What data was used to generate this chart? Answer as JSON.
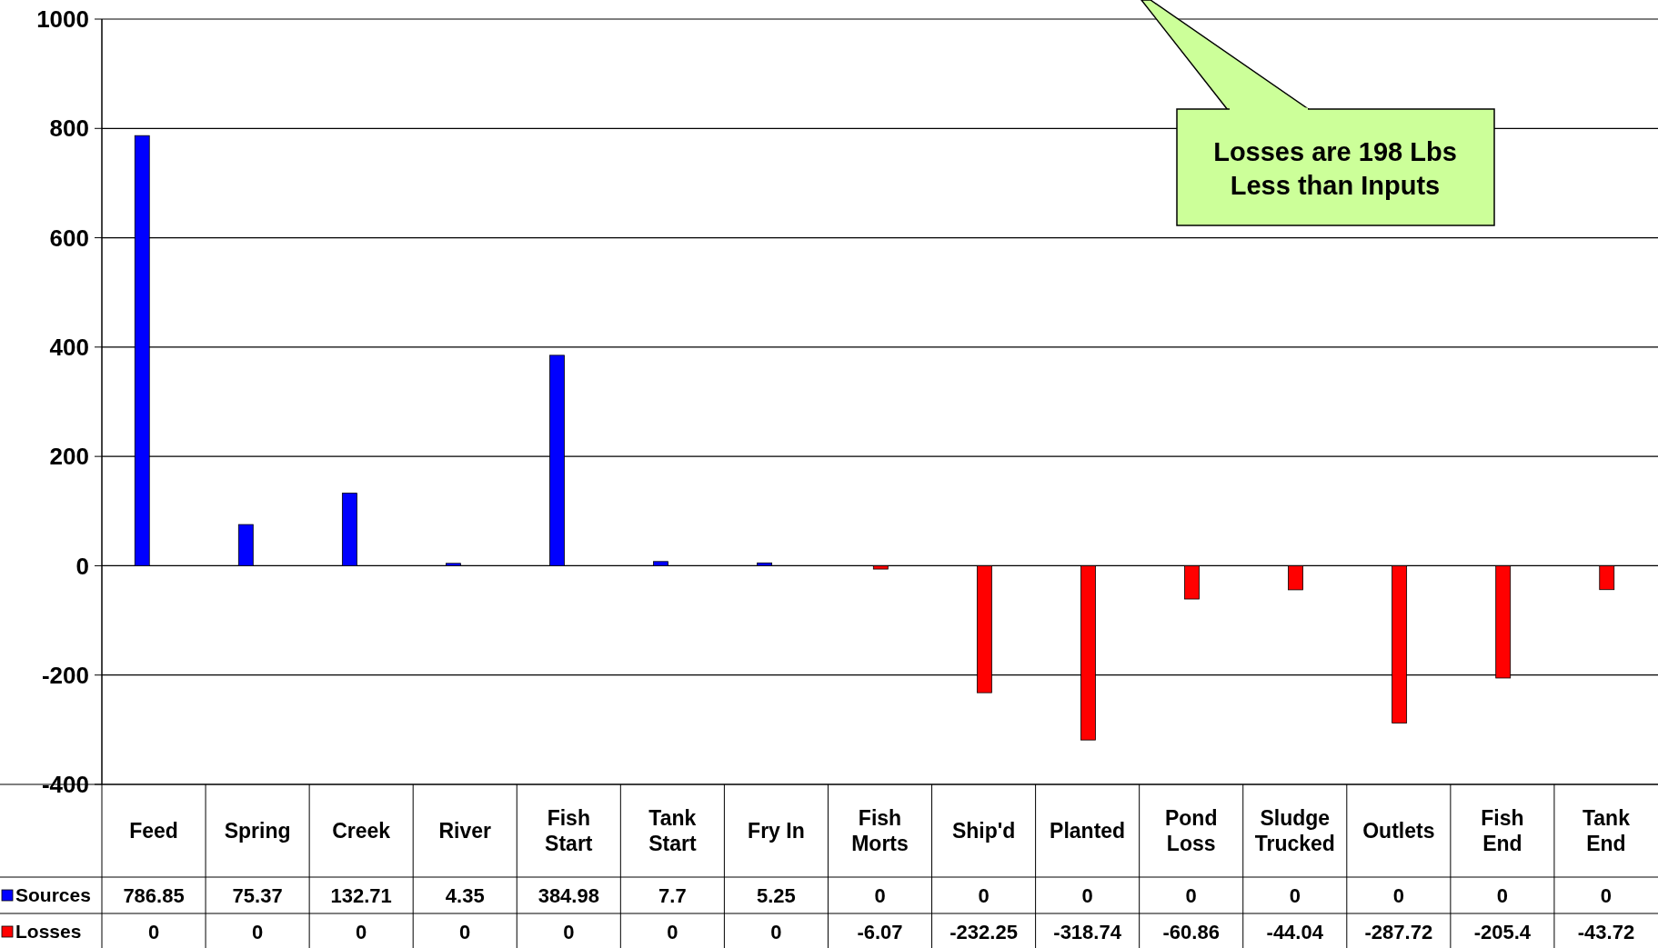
{
  "chart_data": {
    "type": "bar",
    "categories": [
      "Feed",
      "Spring",
      "Creek",
      "River",
      "Fish Start",
      "Tank Start",
      "Fry In",
      "Fish Morts",
      "Ship'd",
      "Planted",
      "Pond Loss",
      "Sludge Trucked",
      "Outlets",
      "Fish End",
      "Tank End"
    ],
    "series": [
      {
        "name": "Sources",
        "color": "#0000ff",
        "values": [
          786.85,
          75.37,
          132.71,
          4.35,
          384.98,
          7.7,
          5.25,
          0,
          0,
          0,
          0,
          0,
          0,
          0,
          0
        ]
      },
      {
        "name": "Losses",
        "color": "#ff0000",
        "values": [
          0,
          0,
          0,
          0,
          0,
          0,
          0,
          -6.07,
          -232.25,
          -318.74,
          -60.86,
          -44.04,
          -287.72,
          -205.4,
          -43.72
        ]
      }
    ],
    "ylim": [
      -400,
      1000
    ],
    "yticks": [
      -400,
      -200,
      0,
      200,
      400,
      600,
      800,
      1000
    ],
    "grid": "y",
    "data_labels": true,
    "legend": "bottom left",
    "annotations": [
      "Losses are 198 Lbs Less than Inputs"
    ]
  }
}
